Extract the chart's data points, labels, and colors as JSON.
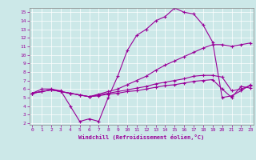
{
  "xlabel": "Windchill (Refroidissement éolien,°C)",
  "bg_color": "#cce8e8",
  "line_color": "#990099",
  "xticks": [
    0,
    1,
    2,
    3,
    4,
    5,
    6,
    7,
    8,
    9,
    10,
    11,
    12,
    13,
    14,
    15,
    16,
    17,
    18,
    19,
    20,
    21,
    22,
    23
  ],
  "yticks": [
    2,
    3,
    4,
    5,
    6,
    7,
    8,
    9,
    10,
    11,
    12,
    13,
    14,
    15
  ],
  "line1_y": [
    5.5,
    6.0,
    6.0,
    5.8,
    4.0,
    2.2,
    2.5,
    2.2,
    5.0,
    7.5,
    10.5,
    12.3,
    13.0,
    14.0,
    14.5,
    15.5,
    15.0,
    14.8,
    13.5,
    11.5,
    5.0,
    5.2,
    5.8,
    6.5
  ],
  "line2_y": [
    5.5,
    5.7,
    5.9,
    5.7,
    5.5,
    5.3,
    5.1,
    5.4,
    5.7,
    6.0,
    6.5,
    7.0,
    7.5,
    8.2,
    8.8,
    9.3,
    9.8,
    10.3,
    10.8,
    11.2,
    11.2,
    11.0,
    11.2,
    11.4
  ],
  "line3_y": [
    5.5,
    5.7,
    5.9,
    5.7,
    5.5,
    5.3,
    5.1,
    5.3,
    5.5,
    5.7,
    5.9,
    6.1,
    6.3,
    6.6,
    6.8,
    7.0,
    7.2,
    7.5,
    7.6,
    7.6,
    7.4,
    5.8,
    6.0,
    6.4
  ],
  "line4_y": [
    5.5,
    5.7,
    5.9,
    5.7,
    5.5,
    5.3,
    5.1,
    5.2,
    5.4,
    5.5,
    5.7,
    5.8,
    6.0,
    6.2,
    6.4,
    6.5,
    6.7,
    6.9,
    7.0,
    7.1,
    6.0,
    5.0,
    6.3,
    6.1
  ]
}
